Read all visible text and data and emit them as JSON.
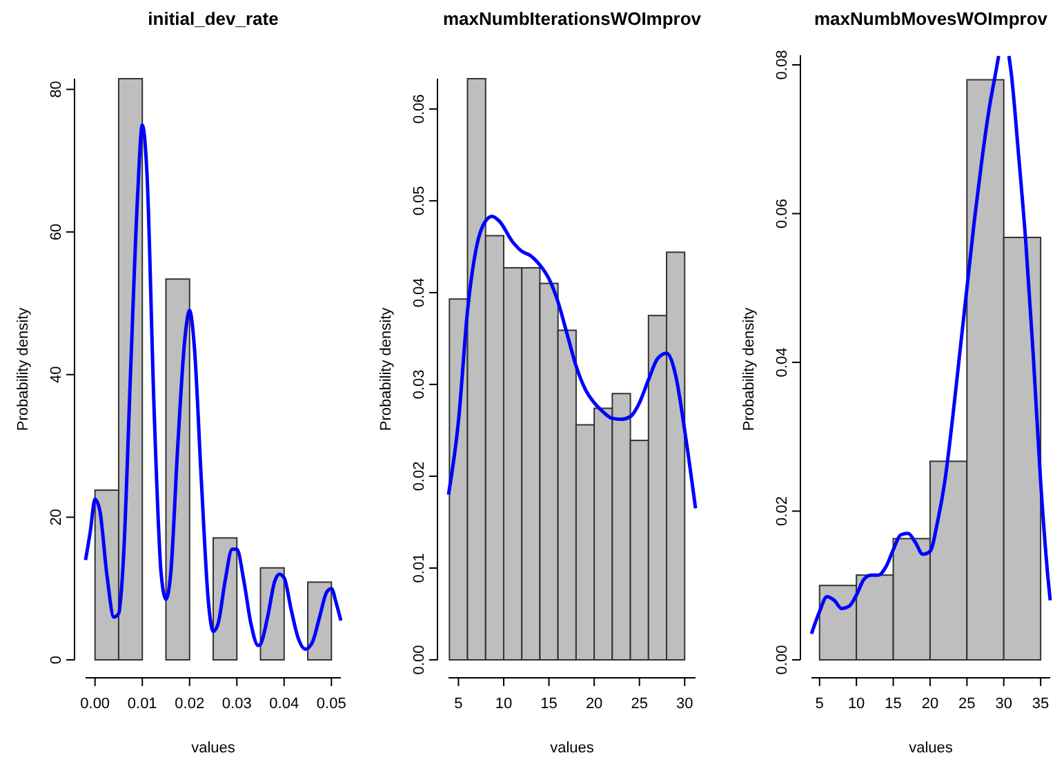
{
  "chart_data": [
    {
      "type": "histogram",
      "title": "initial_dev_rate",
      "xlabel": "values",
      "ylabel": "Probability density",
      "bins": [
        0,
        0.005,
        0.01,
        0.015,
        0.02,
        0.025,
        0.03,
        0.035,
        0.04,
        0.045,
        0.05
      ],
      "values": [
        23.8,
        81.5,
        0,
        53.4,
        0,
        17.1,
        0,
        12.9,
        0,
        10.9
      ],
      "color": "#bebebe",
      "xlim": [
        -0.002,
        0.052
      ],
      "ylim": [
        0,
        81.5
      ],
      "xticks": [
        {
          "value": 0,
          "label": "0.00"
        },
        0.01,
        0.02,
        0.03,
        0.04,
        0.05
      ],
      "yticks": [
        0,
        20,
        40,
        60,
        80
      ],
      "series": [
        {
          "type": "line",
          "color": "#0000ff",
          "x": [
            -0.002,
            -0.001,
            0,
            0.001,
            0.0025,
            0.004,
            0.005,
            0.006,
            0.0075,
            0.009,
            0.01,
            0.011,
            0.0125,
            0.014,
            0.015,
            0.016,
            0.0175,
            0.019,
            0.02,
            0.021,
            0.0225,
            0.024,
            0.025,
            0.026,
            0.0275,
            0.029,
            0.03,
            0.0315,
            0.033,
            0.0345,
            0.035,
            0.0365,
            0.038,
            0.039,
            0.04,
            0.0415,
            0.043,
            0.0445,
            0.046,
            0.0475,
            0.049,
            0.05,
            0.051,
            0.052
          ],
          "values": [
            14,
            18,
            22.5,
            21,
            12,
            6,
            6.5,
            14,
            40,
            65,
            75,
            68,
            35,
            12,
            8.5,
            12,
            30,
            45,
            49,
            44,
            25,
            8,
            4,
            5,
            11,
            15.5,
            15.5,
            11,
            5,
            2,
            2.2,
            6,
            11,
            12,
            11.5,
            7,
            3,
            1.5,
            2.5,
            6,
            9.5,
            10,
            8,
            5.5
          ]
        }
      ]
    },
    {
      "type": "histogram",
      "title": "maxNumbIterationsWOImprov",
      "xlabel": "values",
      "ylabel": "Probability density",
      "bins": [
        4,
        6,
        8,
        10,
        12,
        14,
        16,
        18,
        20,
        22,
        24,
        26,
        28,
        30
      ],
      "values": [
        0.0393,
        0.0633,
        0.0462,
        0.0427,
        0.0427,
        0.041,
        0.0359,
        0.0256,
        0.0274,
        0.029,
        0.0239,
        0.0375,
        0.0444
      ],
      "color": "#bebebe",
      "xlim": [
        3.9,
        31.2
      ],
      "ylim": [
        0,
        0.0633
      ],
      "xticks": [
        5,
        10,
        15,
        20,
        25,
        30
      ],
      "yticks": [
        {
          "value": 0,
          "label": "0.00"
        },
        0.01,
        0.02,
        0.03,
        0.04,
        0.05,
        0.06
      ],
      "series": [
        {
          "type": "line",
          "color": "#0000ff",
          "x": [
            3.9,
            5,
            6,
            7,
            8,
            8.7,
            9.5,
            11,
            12,
            13,
            14,
            15,
            16,
            17,
            18,
            19,
            20,
            21,
            22,
            23,
            24,
            25,
            26,
            27,
            28,
            29,
            30,
            31.2
          ],
          "values": [
            0.018,
            0.026,
            0.038,
            0.045,
            0.0478,
            0.0483,
            0.0478,
            0.0455,
            0.0445,
            0.044,
            0.043,
            0.0415,
            0.039,
            0.0355,
            0.032,
            0.0295,
            0.028,
            0.027,
            0.0263,
            0.0262,
            0.0265,
            0.028,
            0.0305,
            0.0328,
            0.0334,
            0.031,
            0.025,
            0.0165
          ]
        }
      ]
    },
    {
      "type": "histogram",
      "title": "maxNumbMovesWOImprov",
      "xlabel": "values",
      "ylabel": "Probability density",
      "bins": [
        5,
        10,
        15,
        20,
        25,
        30,
        35
      ],
      "values": [
        0.01,
        0.0114,
        0.0163,
        0.0267,
        0.078,
        0.0568
      ],
      "color": "#bebebe",
      "xlim": [
        3.9,
        36.3
      ],
      "ylim": [
        0,
        0.0813
      ],
      "xticks": [
        5,
        10,
        15,
        20,
        25,
        30,
        35
      ],
      "yticks": [
        {
          "value": 0,
          "label": "0.00"
        },
        0.02,
        0.04,
        0.06,
        0.08
      ],
      "series": [
        {
          "type": "line",
          "color": "#0000ff",
          "x": [
            3.9,
            5,
            6,
            7,
            8,
            9,
            10,
            11,
            12,
            13,
            14,
            15,
            16,
            17,
            18,
            19,
            20,
            21,
            22,
            23,
            24,
            25,
            26,
            27,
            28,
            29,
            29.3,
            30,
            30.7,
            31,
            32,
            33,
            34,
            35,
            36,
            36.3
          ],
          "values": [
            0.0035,
            0.0065,
            0.0085,
            0.008,
            0.0069,
            0.0072,
            0.0087,
            0.0108,
            0.0114,
            0.0114,
            0.0125,
            0.0148,
            0.0168,
            0.017,
            0.0158,
            0.0142,
            0.0146,
            0.0185,
            0.024,
            0.032,
            0.041,
            0.05,
            0.059,
            0.067,
            0.074,
            0.0795,
            0.0812,
            null,
            0.0812,
            0.079,
            0.068,
            0.056,
            0.041,
            0.024,
            0.011,
            0.008
          ]
        }
      ]
    }
  ]
}
